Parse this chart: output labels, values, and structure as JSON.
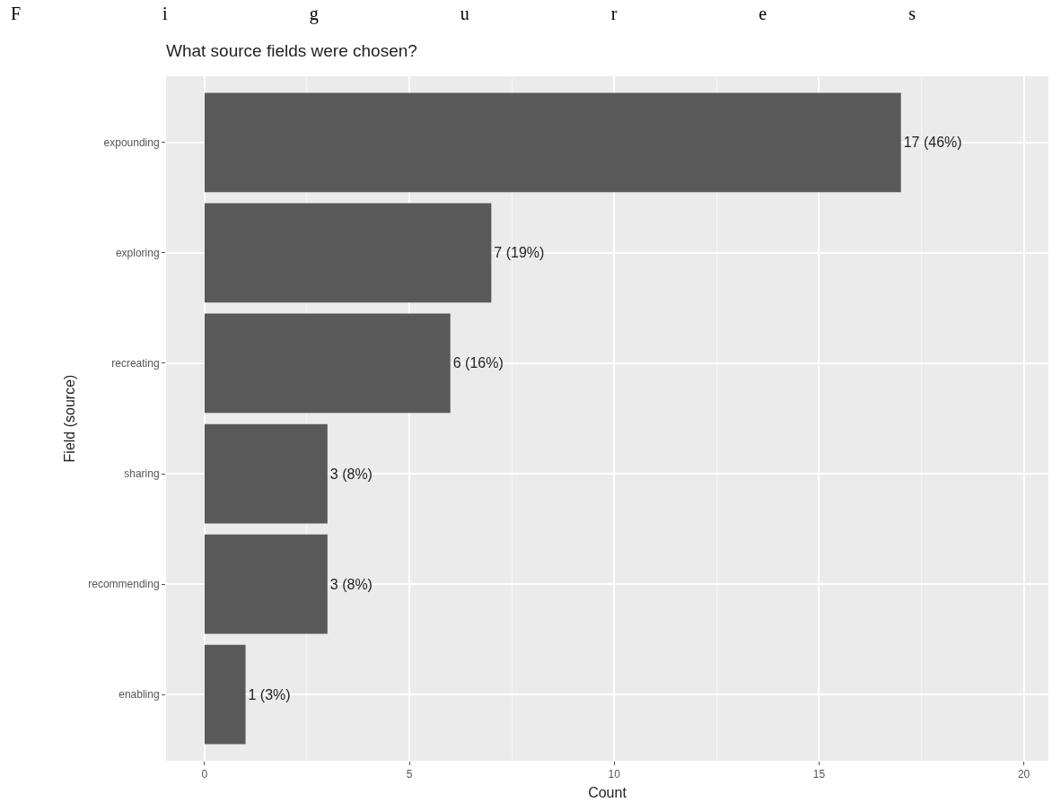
{
  "chart_data": {
    "type": "bar",
    "orientation": "horizontal",
    "title": "Figures",
    "subtitle": "What source fields were chosen?",
    "xlabel": "Count",
    "ylabel": "Field (source)",
    "categories": [
      "expounding",
      "exploring",
      "recreating",
      "sharing",
      "recommending",
      "enabling"
    ],
    "values": [
      17,
      7,
      6,
      3,
      3,
      1
    ],
    "value_labels": [
      "17 (46%)",
      "7 (19%)",
      "6 (16%)",
      "3 (8%)",
      "3 (8%)",
      "1 (3%)"
    ],
    "color": "#595959",
    "xlim": [
      -0.94,
      20.6
    ],
    "xticks": [
      0,
      5,
      10,
      15,
      20
    ],
    "grid": true
  }
}
